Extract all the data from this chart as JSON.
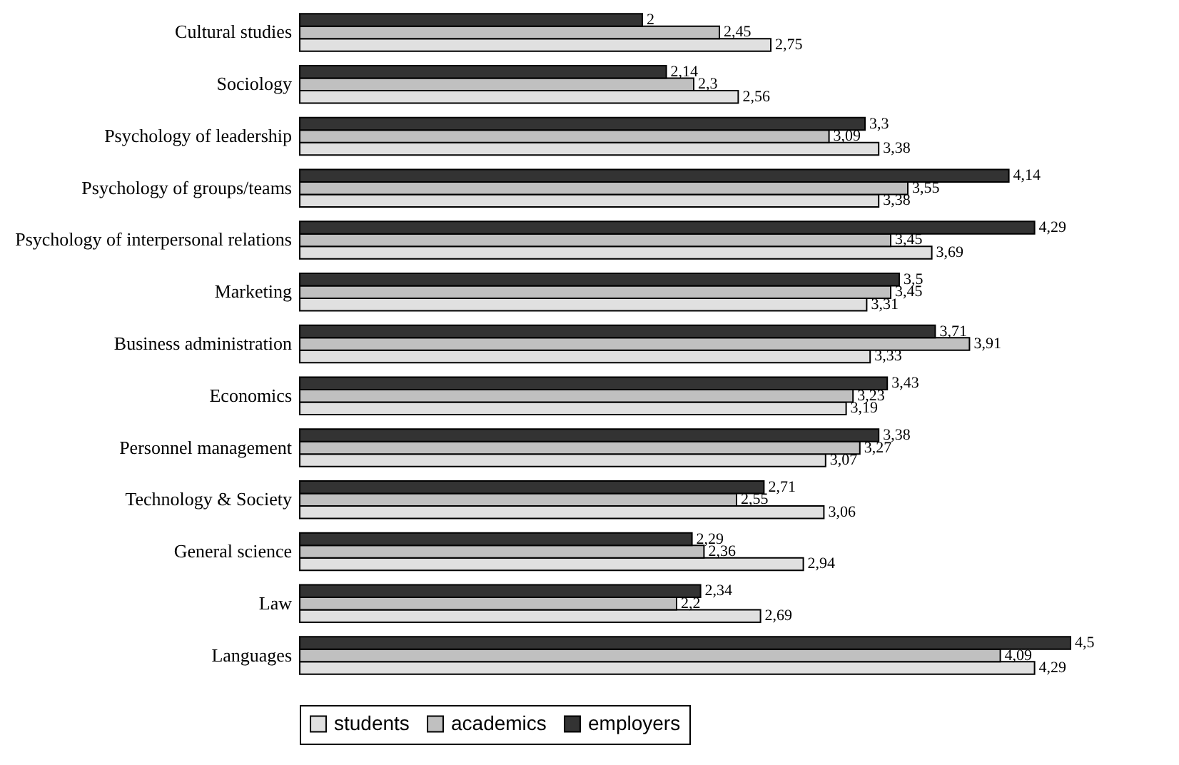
{
  "chart_data": {
    "type": "bar",
    "orientation": "horizontal",
    "legend": "bottom",
    "categories": [
      "Cultural studies",
      "Sociology",
      "Psychology of leadership",
      "Psychology of groups/teams",
      "Psychology of interpersonal relations",
      "Marketing",
      "Business administration",
      "Economics",
      "Personnel management",
      "Technology & Society",
      "General science",
      "Law",
      "Languages"
    ],
    "series": [
      {
        "name": "students",
        "color": "#e0e0e0",
        "values": [
          2.75,
          2.56,
          3.38,
          3.38,
          3.69,
          3.31,
          3.33,
          3.19,
          3.07,
          3.06,
          2.94,
          2.69,
          4.29
        ],
        "value_labels": [
          "2,75",
          "2,56",
          "3,38",
          "3,38",
          "3,69",
          "3,31",
          "3,33",
          "3,19",
          "3,07",
          "3,06",
          "2,94",
          "2,69",
          "4,29"
        ]
      },
      {
        "name": "academics",
        "color": "#c0c0c0",
        "values": [
          2.45,
          2.3,
          3.09,
          3.55,
          3.45,
          3.45,
          3.91,
          3.23,
          3.27,
          2.55,
          2.36,
          2.2,
          4.09
        ],
        "value_labels": [
          "2,45",
          "2,3",
          "3,09",
          "3,55",
          "3,45",
          "3,45",
          "3,91",
          "3,23",
          "3,27",
          "2,55",
          "2,36",
          "2,2",
          "4,09"
        ]
      },
      {
        "name": "employers",
        "color": "#333333",
        "values": [
          2,
          2.14,
          3.3,
          4.14,
          4.29,
          3.5,
          3.71,
          3.43,
          3.38,
          2.71,
          2.29,
          2.34,
          4.5
        ],
        "value_labels": [
          "2",
          "2,14",
          "3,3",
          "4,14",
          "4,29",
          "3,5",
          "3,71",
          "3,43",
          "3,38",
          "2,71",
          "2,29",
          "2,34",
          "4,5"
        ]
      }
    ]
  }
}
